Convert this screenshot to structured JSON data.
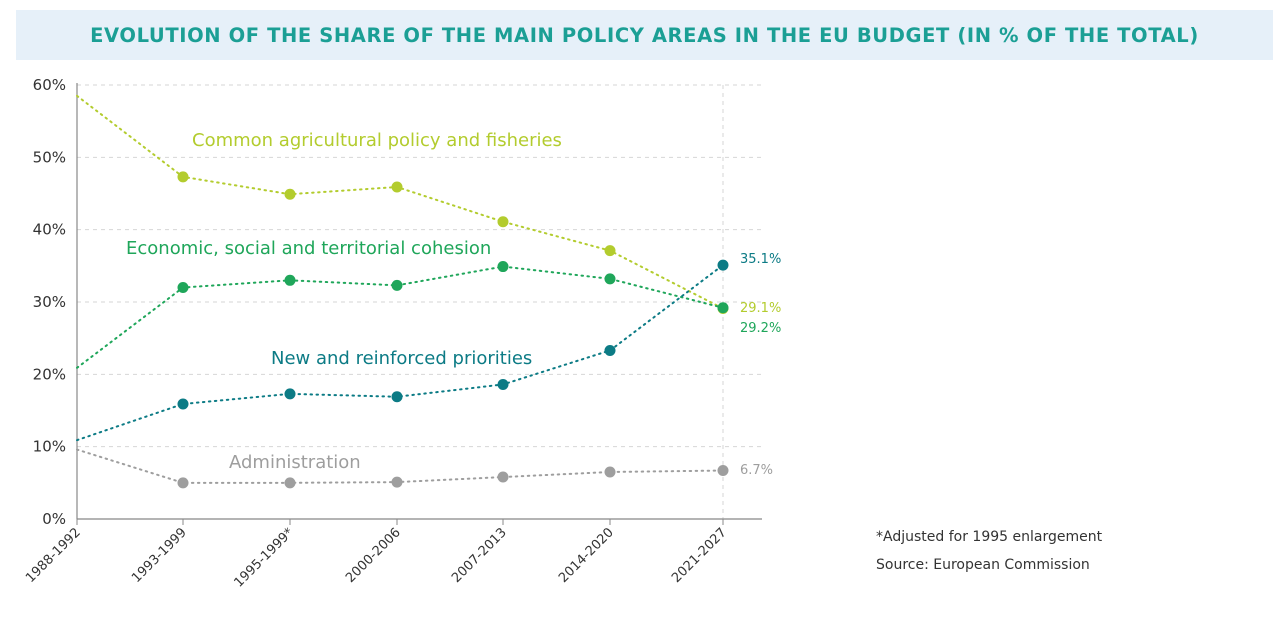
{
  "header": {
    "title": "EVOLUTION OF THE SHARE OF THE MAIN POLICY AREAS IN THE EU BUDGET (IN % OF THE TOTAL)"
  },
  "notes": {
    "footnote": "*Adjusted for 1995 enlargement",
    "source": "Source: European Commission"
  },
  "chart_data": {
    "type": "line",
    "title": "EVOLUTION OF THE SHARE OF THE MAIN POLICY AREAS IN THE EU BUDGET (IN % OF THE TOTAL)",
    "xlabel": "",
    "ylabel": "",
    "categories": [
      "1988-1992",
      "1993-1999",
      "1995-1999*",
      "2000-2006",
      "2007-2013",
      "2014-2020",
      "2021-2027"
    ],
    "yticks": [
      "0%",
      "10%",
      "20%",
      "30%",
      "40%",
      "50%",
      "60%"
    ],
    "ylim": [
      0,
      60
    ],
    "grid": "horizontal dashed",
    "legend": "inline labels",
    "series": [
      {
        "name": "Common agricultural policy and fisheries",
        "color": "#b3cc2e",
        "values": [
          58.5,
          47.3,
          44.9,
          45.9,
          41.1,
          37.1,
          29.1
        ],
        "end_label": "29.1%"
      },
      {
        "name": "Economic, social and territorial cohesion",
        "color": "#1fa65a",
        "values": [
          20.9,
          32.0,
          33.0,
          32.3,
          34.9,
          33.2,
          29.2
        ],
        "end_label": "29.2%"
      },
      {
        "name": "New and reinforced priorities",
        "color": "#0c7b85",
        "values": [
          10.9,
          15.9,
          17.3,
          16.9,
          18.6,
          23.3,
          35.1
        ],
        "end_label": "35.1%"
      },
      {
        "name": "Administration",
        "color": "#9e9e9e",
        "values": [
          9.6,
          5.0,
          5.0,
          5.1,
          5.8,
          6.5,
          6.7
        ],
        "end_label": "6.7%"
      }
    ]
  }
}
